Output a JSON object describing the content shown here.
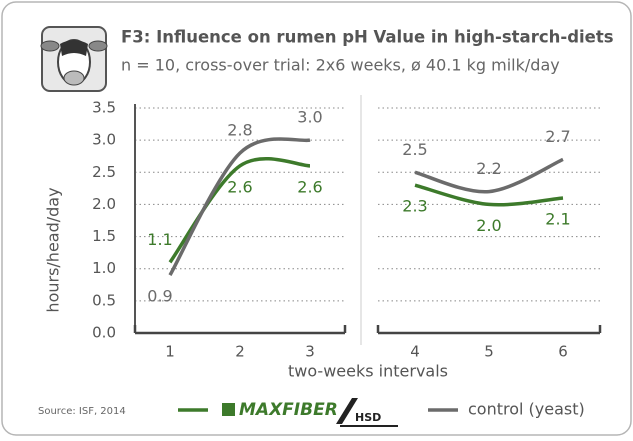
{
  "chart_data": {
    "type": "line",
    "title": "F3: Influence on rumen pH Value in high-starch-diets",
    "subtitle": "n = 10, cross-over trial: 2x6 weeks, ø 40.1 kg milk/day",
    "y_label": "hours/head/day",
    "x_label": "two-weeks intervals",
    "source": "Source: ISF, 2014",
    "logo_suffix": "HSD",
    "x": [
      1,
      2,
      3,
      4,
      5,
      6
    ],
    "ylim": [
      0,
      3.5
    ],
    "yticks": [
      {
        "value": 0,
        "label": "0.0"
      },
      0.5,
      {
        "value": 1,
        "label": "1.0"
      },
      1.5,
      {
        "value": 2,
        "label": "2.0"
      },
      2.5,
      {
        "value": 3,
        "label": "3.0"
      },
      3.5
    ],
    "grid": true,
    "series": [
      {
        "name": "MAXFIBER",
        "color": "#3d7a2b",
        "values": [
          1.1,
          2.6,
          2.6,
          2.3,
          2.0,
          2.1
        ],
        "value_labels": [
          "1.1",
          "2.6",
          "2.6",
          "2.3",
          "2.0",
          "2.1"
        ]
      },
      {
        "name": "control (yeast)",
        "color": "#6b6b6b",
        "values": [
          0.9,
          2.8,
          3.0,
          2.5,
          2.2,
          2.7
        ],
        "value_labels": [
          "0.9",
          "2.8",
          "3.0",
          "2.5",
          "2.2",
          "2.7"
        ]
      }
    ]
  }
}
